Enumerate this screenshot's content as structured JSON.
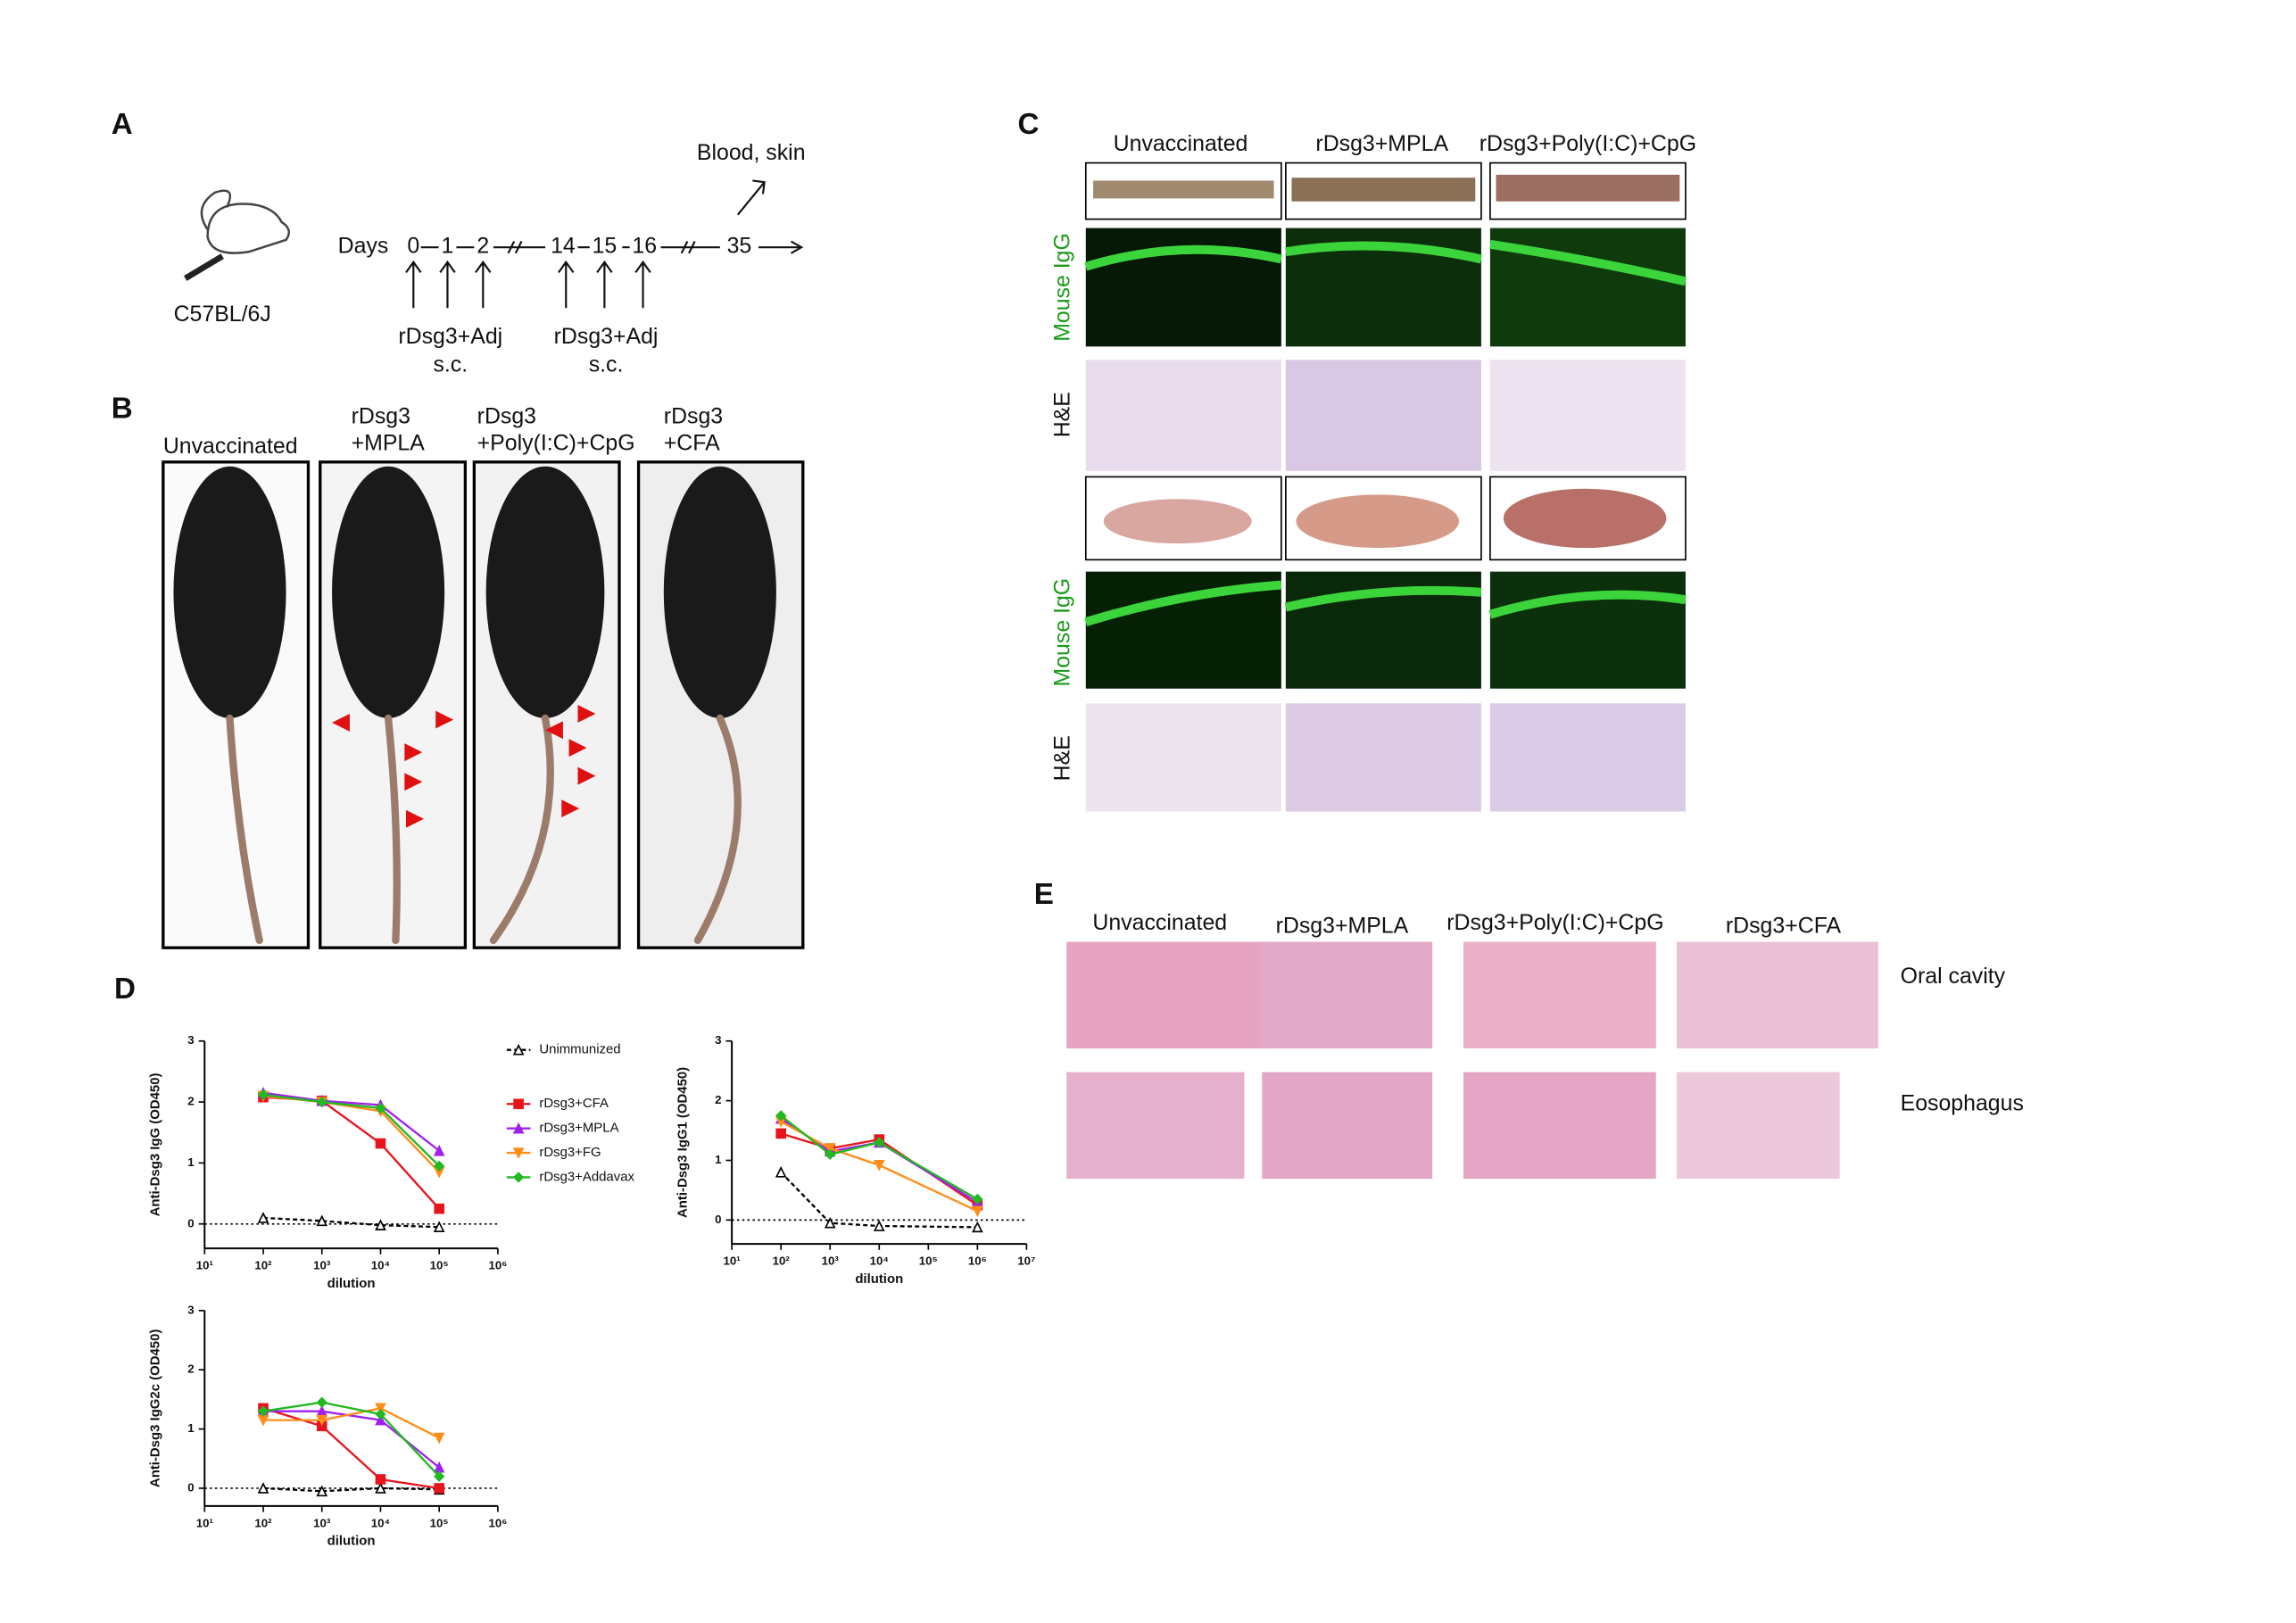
{
  "panel_a": {
    "label": "A",
    "output": "Blood, skin",
    "days_label": "Days",
    "days": [
      "0",
      "1",
      "2",
      "14",
      "15",
      "16",
      "35"
    ],
    "strain": "C57BL/6J",
    "doses": [
      {
        "agent": "rDsg3+Adj",
        "route": "s.c."
      },
      {
        "agent": "rDsg3+Adj",
        "route": "s.c."
      }
    ]
  },
  "panel_b": {
    "label": "B",
    "groups": [
      [
        "Unvaccinated"
      ],
      [
        "rDsg3",
        "+MPLA"
      ],
      [
        "rDsg3",
        "+Poly(I:C)+CpG"
      ],
      [
        "rDsg3",
        "+CFA"
      ]
    ]
  },
  "panel_c": {
    "label": "C",
    "columns": [
      "Unvaccinated",
      "rDsg3+MPLA",
      "rDsg3+Poly(I:C)+CpG"
    ],
    "row_labels": [
      "Mouse IgG",
      "H&E",
      "Mouse IgG",
      "H&E"
    ]
  },
  "panel_d": {
    "label": "D"
  },
  "panel_e": {
    "label": "E",
    "columns": [
      "Unvaccinated",
      "rDsg3+MPLA",
      "rDsg3+Poly(I:C)+CpG",
      "rDsg3+CFA"
    ],
    "rows": [
      "Oral cavity",
      "Eosophagus"
    ]
  },
  "chart_data": [
    {
      "type": "line",
      "y_label": "Anti-Dsg3 IgG (OD450)",
      "x_label": "dilution",
      "x_scale": "log",
      "legend": "right",
      "reference_line": 0,
      "xlim": [
        10,
        1000000
      ],
      "xticks": [
        {
          "value": 10,
          "label": "10¹"
        },
        {
          "value": 100,
          "label": "10²"
        },
        {
          "value": 1000,
          "label": "10³"
        },
        {
          "value": 10000,
          "label": "10⁴"
        },
        {
          "value": 100000,
          "label": "10⁵"
        },
        {
          "value": 1000000,
          "label": "10⁶"
        }
      ],
      "ylim": [
        -0.4,
        3
      ],
      "yticks": [
        0,
        1,
        2,
        3
      ],
      "x": [
        100,
        1000,
        10000,
        100000
      ],
      "series": [
        {
          "name": "Unimmunized",
          "color": "#000000",
          "marker": "triangle-open",
          "dash": true,
          "values": [
            0.1,
            0.05,
            -0.02,
            -0.05
          ]
        },
        {
          "name": "rDsg3+CFA",
          "color": "#e8141c",
          "marker": "square",
          "dash": false,
          "values": [
            2.08,
            2.02,
            1.32,
            0.25
          ]
        },
        {
          "name": "rDsg3+MPLA",
          "color": "#a020f0",
          "marker": "triangle",
          "dash": false,
          "values": [
            2.15,
            2.02,
            1.95,
            1.2
          ]
        },
        {
          "name": "rDsg3+FG",
          "color": "#ff8c1a",
          "marker": "triangle-down",
          "dash": false,
          "values": [
            2.1,
            2.0,
            1.85,
            0.85
          ]
        },
        {
          "name": "rDsg3+Addavax",
          "color": "#22b822",
          "marker": "diamond",
          "dash": false,
          "values": [
            2.12,
            2.0,
            1.9,
            0.95
          ]
        }
      ]
    },
    {
      "type": "line",
      "y_label": "Anti-Dsg3 IgG1 (OD450)",
      "x_label": "dilution",
      "x_scale": "log",
      "reference_line": 0,
      "xlim": [
        10,
        10000000
      ],
      "xticks": [
        {
          "value": 10,
          "label": "10¹"
        },
        {
          "value": 100,
          "label": "10²"
        },
        {
          "value": 1000,
          "label": "10³"
        },
        {
          "value": 10000,
          "label": "10⁴"
        },
        {
          "value": 100000,
          "label": "10⁵"
        },
        {
          "value": 1000000,
          "label": "10⁶"
        },
        {
          "value": 10000000,
          "label": "10⁷"
        }
      ],
      "ylim": [
        -0.4,
        3
      ],
      "yticks": [
        0,
        1,
        2,
        3
      ],
      "x": [
        100,
        1000,
        10000,
        1000000
      ],
      "series": [
        {
          "color": "#000000",
          "marker": "triangle-open",
          "dash": true,
          "values": [
            0.8,
            -0.05,
            -0.1,
            -0.12
          ]
        },
        {
          "color": "#e8141c",
          "marker": "square",
          "dash": false,
          "values": [
            1.45,
            1.2,
            1.35,
            0.25
          ]
        },
        {
          "color": "#a020f0",
          "marker": "triangle",
          "dash": false,
          "values": [
            1.7,
            1.15,
            1.3,
            0.3
          ]
        },
        {
          "color": "#ff8c1a",
          "marker": "triangle-down",
          "dash": false,
          "values": [
            1.65,
            1.2,
            0.92,
            0.15
          ]
        },
        {
          "color": "#22b822",
          "marker": "diamond",
          "dash": false,
          "values": [
            1.75,
            1.1,
            1.3,
            0.35
          ]
        }
      ]
    },
    {
      "type": "line",
      "y_label": "Anti-Dsg3 IgG2c (OD450)",
      "x_label": "dilution",
      "x_scale": "log",
      "reference_line": 0,
      "xlim": [
        10,
        1000000
      ],
      "xticks": [
        {
          "value": 10,
          "label": "10¹"
        },
        {
          "value": 100,
          "label": "10²"
        },
        {
          "value": 1000,
          "label": "10³"
        },
        {
          "value": 10000,
          "label": "10⁴"
        },
        {
          "value": 100000,
          "label": "10⁵"
        },
        {
          "value": 1000000,
          "label": "10⁶"
        }
      ],
      "ylim": [
        -0.3,
        3
      ],
      "yticks": [
        0,
        1,
        2,
        3
      ],
      "x": [
        100,
        1000,
        10000,
        100000
      ],
      "series": [
        {
          "color": "#000000",
          "marker": "triangle-open",
          "dash": true,
          "values": [
            0,
            -0.05,
            0,
            -0.02
          ]
        },
        {
          "color": "#e8141c",
          "marker": "square",
          "dash": false,
          "values": [
            1.35,
            1.05,
            0.15,
            0
          ]
        },
        {
          "color": "#a020f0",
          "marker": "triangle",
          "dash": false,
          "values": [
            1.3,
            1.3,
            1.15,
            0.35
          ]
        },
        {
          "color": "#ff8c1a",
          "marker": "triangle-down",
          "dash": false,
          "values": [
            1.15,
            1.15,
            1.35,
            0.85
          ]
        },
        {
          "color": "#22b822",
          "marker": "diamond",
          "dash": false,
          "values": [
            1.3,
            1.45,
            1.25,
            0.2
          ]
        }
      ]
    }
  ]
}
